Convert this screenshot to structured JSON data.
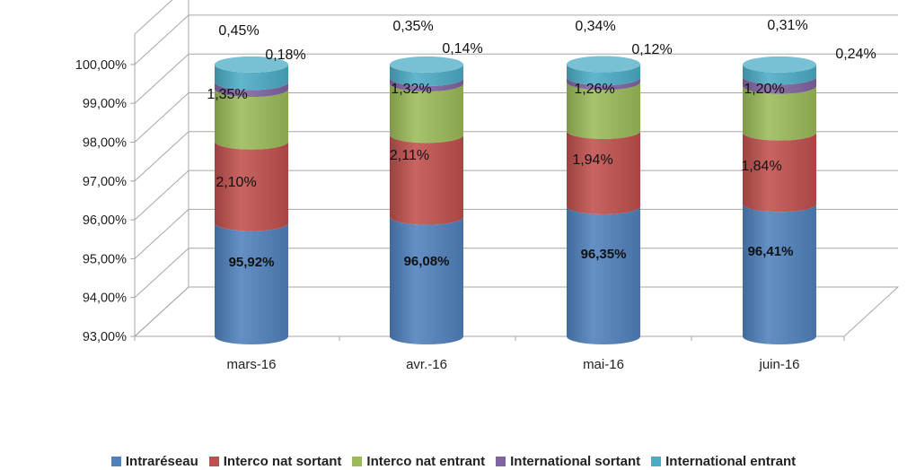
{
  "chart_data": {
    "type": "stacked-bar-3d-cylinder",
    "categories": [
      "mars-16",
      "avr.-16",
      "mai-16",
      "juin-16"
    ],
    "yaxis": {
      "min": 93,
      "max": 100.78,
      "ticks": [
        "93,00%",
        "94,00%",
        "95,00%",
        "96,00%",
        "97,00%",
        "98,00%",
        "99,00%",
        "100,00%"
      ],
      "tick_values": [
        93,
        94,
        95,
        96,
        97,
        98,
        99,
        100
      ]
    },
    "grid": true,
    "legend_position": "bottom",
    "series": [
      {
        "name": "Intraréseau",
        "color": "#4F81BD",
        "values": [
          95.92,
          96.08,
          96.35,
          96.41
        ],
        "labels": [
          "95,92%",
          "96,08%",
          "96,35%",
          "96,41%"
        ]
      },
      {
        "name": "Interco nat sortant",
        "color": "#C0504D",
        "values": [
          2.1,
          2.11,
          1.94,
          1.84
        ],
        "labels": [
          "2,10%",
          "2,11%",
          "1,94%",
          "1,84%"
        ]
      },
      {
        "name": "Interco nat entrant",
        "color": "#9BBB59",
        "values": [
          1.35,
          1.32,
          1.26,
          1.2
        ],
        "labels": [
          "1,35%",
          "1,32%",
          "1,26%",
          "1,20%"
        ]
      },
      {
        "name": "International sortant",
        "color": "#8064A2",
        "values": [
          0.18,
          0.14,
          0.12,
          0.24
        ],
        "labels": [
          "0,18%",
          "0,14%",
          "0,12%",
          "0,24%"
        ]
      },
      {
        "name": "International entrant",
        "color": "#4BACC6",
        "values": [
          0.45,
          0.35,
          0.34,
          0.31
        ],
        "labels": [
          "0,45%",
          "0,35%",
          "0,34%",
          "0,31%"
        ]
      }
    ]
  }
}
